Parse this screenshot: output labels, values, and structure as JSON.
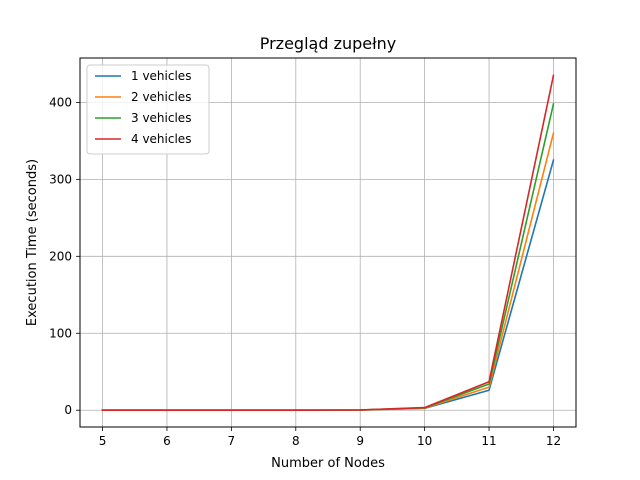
{
  "chart_data": {
    "type": "line",
    "title": "Przegląd zupełny",
    "xlabel": "Number of Nodes",
    "ylabel": "Execution Time (seconds)",
    "x": [
      5,
      6,
      7,
      8,
      9,
      10,
      11,
      12
    ],
    "xticks": [
      "5",
      "6",
      "7",
      "8",
      "9",
      "10",
      "11",
      "12"
    ],
    "yticks": [
      0,
      100,
      200,
      300,
      400
    ],
    "xlim": [
      4.65,
      12.35
    ],
    "ylim": [
      -21.8,
      457.7
    ],
    "grid": true,
    "legend_position": "upper-left",
    "series": [
      {
        "name": "1 vehicles",
        "color": "#1f77b4",
        "values": [
          0,
          0,
          0,
          0,
          0.2,
          2.5,
          26,
          325
        ]
      },
      {
        "name": "2 vehicles",
        "color": "#ff7f0e",
        "values": [
          0,
          0,
          0,
          0,
          0.2,
          2.8,
          30,
          360
        ]
      },
      {
        "name": "3 vehicles",
        "color": "#2ca02c",
        "values": [
          0,
          0,
          0,
          0,
          0.3,
          3.1,
          34,
          398
        ]
      },
      {
        "name": "4 vehicles",
        "color": "#d62728",
        "values": [
          0,
          0,
          0,
          0,
          0.4,
          3.4,
          37,
          435
        ]
      }
    ]
  }
}
